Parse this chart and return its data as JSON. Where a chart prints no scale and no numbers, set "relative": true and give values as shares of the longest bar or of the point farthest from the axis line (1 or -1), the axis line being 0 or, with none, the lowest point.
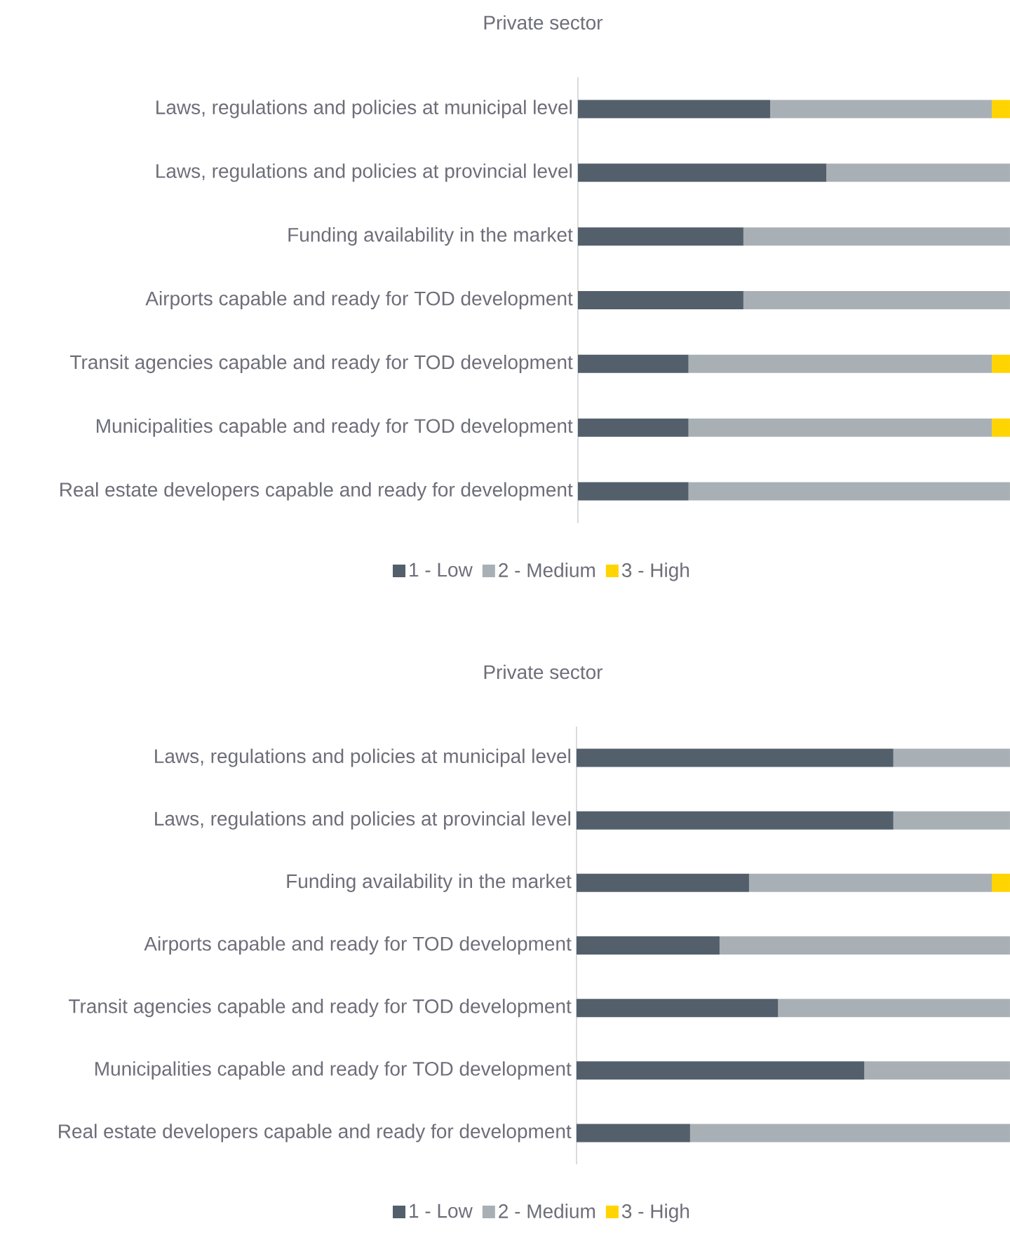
{
  "chart_data": [
    {
      "type": "bar",
      "orientation": "horizontal",
      "stacked": true,
      "relative": true,
      "title": "Private sector",
      "legend": "bottom",
      "categories": [
        "Laws, regulations and policies at municipal level",
        "Laws, regulations and policies at provincial level",
        "Funding availability in the market",
        "Airports capable and ready for TOD development",
        "Transit agencies capable and ready for TOD development",
        "Municipalities capable and ready for TOD development",
        "Real estate developers capable and ready for development"
      ],
      "series": [
        {
          "name": "1 - Low",
          "color": "#535f6b",
          "values": [
            0.445,
            0.575,
            0.383,
            0.383,
            0.256,
            0.256,
            0.256
          ]
        },
        {
          "name": "2 - Medium",
          "color": "#a8b0b5",
          "values": [
            0.513,
            0.425,
            0.617,
            0.617,
            0.702,
            0.702,
            0.744
          ]
        },
        {
          "name": "3 - High",
          "color": "#ffd400",
          "values": [
            0.042,
            null,
            null,
            null,
            0.042,
            0.042,
            null
          ]
        }
      ]
    },
    {
      "type": "bar",
      "orientation": "horizontal",
      "stacked": true,
      "relative": true,
      "title": "Private sector",
      "legend": "bottom",
      "categories": [
        "Laws, regulations and policies at municipal level",
        "Laws, regulations and policies at provincial level",
        "Funding availability in the market",
        "Airports capable and ready for TOD development",
        "Transit agencies capable and ready for TOD development",
        "Municipalities capable and ready for TOD development",
        "Real estate developers capable and ready for development"
      ],
      "series": [
        {
          "name": "1 - Low",
          "color": "#535f6b",
          "values": [
            0.731,
            0.731,
            0.398,
            0.33,
            0.465,
            0.664,
            0.262
          ]
        },
        {
          "name": "2 - Medium",
          "color": "#a8b0b5",
          "values": [
            0.269,
            0.269,
            0.56,
            0.67,
            0.535,
            0.336,
            0.738
          ]
        },
        {
          "name": "3 - High",
          "color": "#ffd400",
          "values": [
            null,
            null,
            0.042,
            null,
            null,
            null,
            null
          ]
        }
      ]
    }
  ]
}
